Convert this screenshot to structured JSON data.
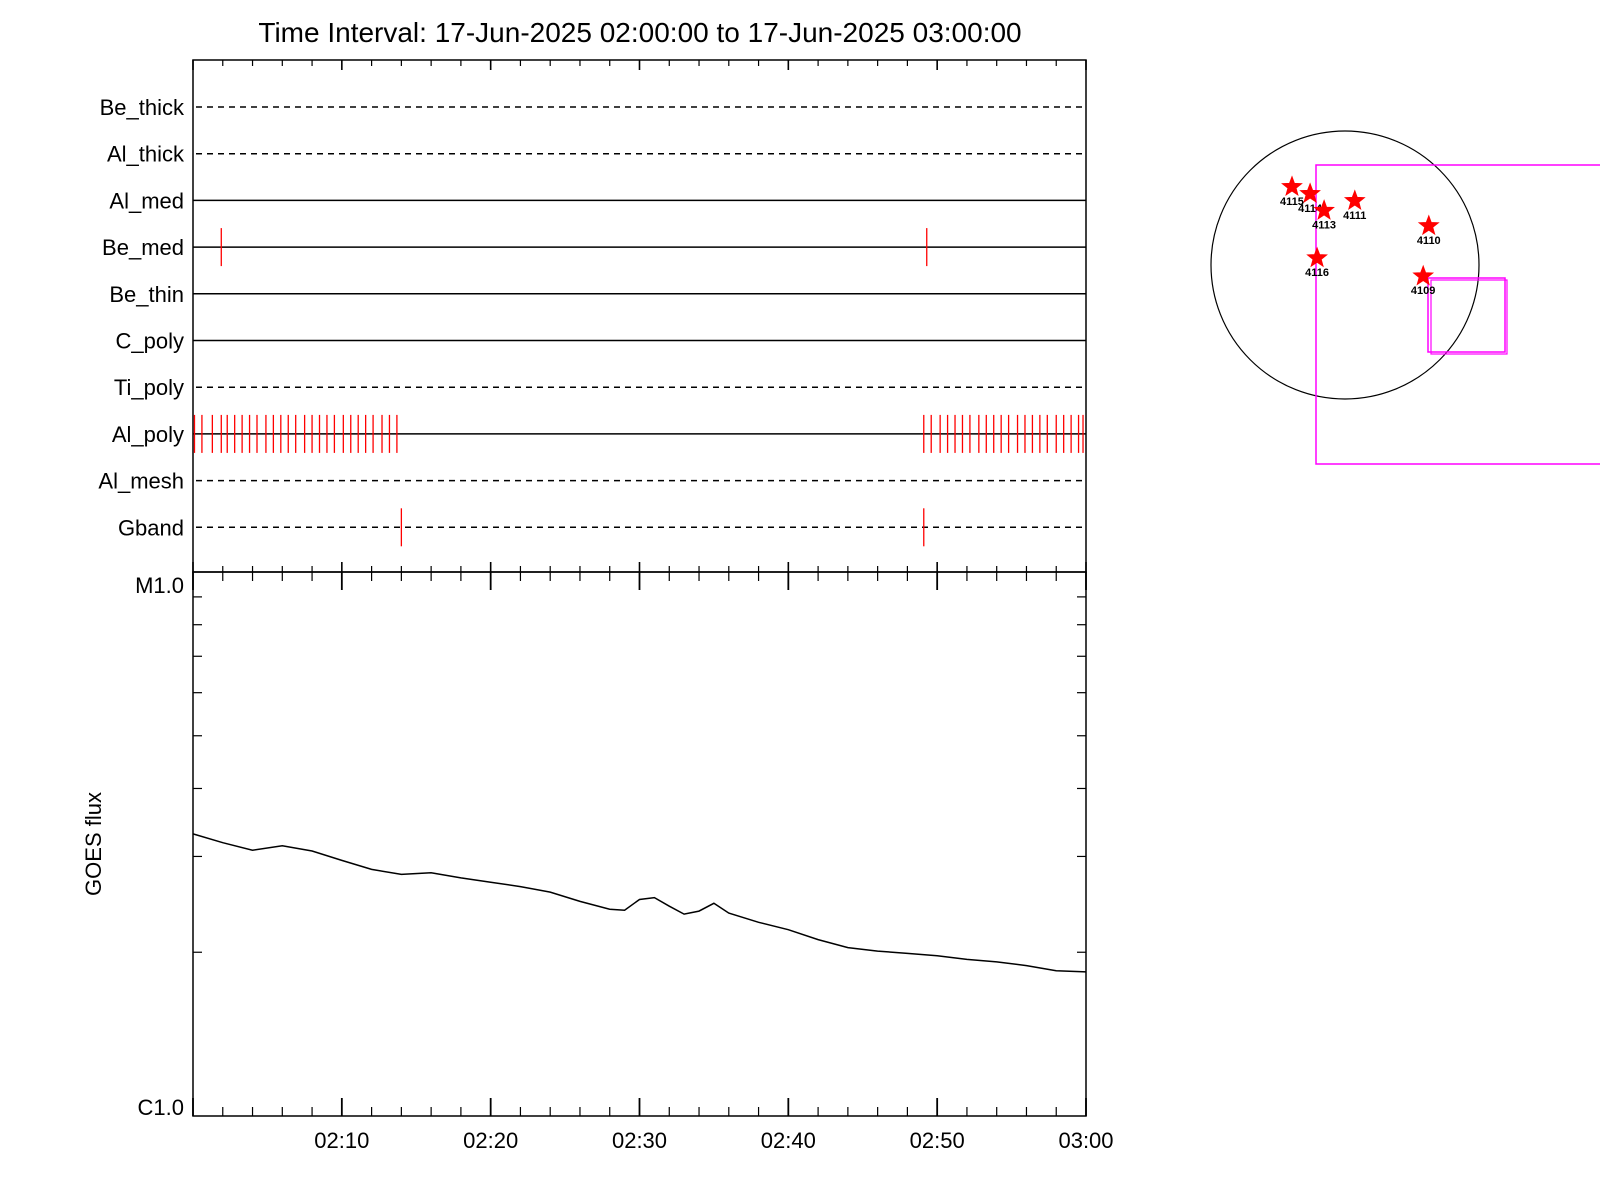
{
  "title": "Time Interval: 17-Jun-2025 02:00:00 to 17-Jun-2025 03:00:00",
  "colors": {
    "axis": "#000000",
    "event": "#ff0000",
    "fov": "#ff00ff",
    "sun": "#000000",
    "curve": "#000000"
  },
  "chart_data": [
    {
      "type": "line",
      "name": "filter-timeline",
      "x_range": [
        "02:00",
        "03:00"
      ],
      "filters": [
        {
          "label": "Be_thick",
          "style": "dashed",
          "events": []
        },
        {
          "label": "Al_thick",
          "style": "dashed",
          "events": []
        },
        {
          "label": "Al_med",
          "style": "solid",
          "events": []
        },
        {
          "label": "Be_med",
          "style": "solid",
          "events": [
            1.9,
            49.3
          ]
        },
        {
          "label": "Be_thin",
          "style": "solid",
          "events": []
        },
        {
          "label": "C_poly",
          "style": "solid",
          "events": []
        },
        {
          "label": "Ti_poly",
          "style": "dashed",
          "events": []
        },
        {
          "label": "Al_poly",
          "style": "solid",
          "events": [
            0.1,
            0.6,
            1.3,
            1.9,
            2.3,
            2.8,
            3.3,
            3.8,
            4.3,
            4.9,
            5.4,
            5.9,
            6.4,
            6.9,
            7.5,
            8.0,
            8.5,
            9.0,
            9.5,
            10.1,
            10.6,
            11.1,
            11.6,
            12.1,
            12.7,
            13.2,
            13.7,
            49.1,
            49.6,
            50.2,
            50.7,
            51.2,
            51.7,
            52.2,
            52.8,
            53.3,
            53.8,
            54.3,
            54.8,
            55.4,
            55.9,
            56.4,
            56.9,
            57.4,
            58.0,
            58.5,
            59.0,
            59.5,
            59.8
          ]
        },
        {
          "label": "Al_mesh",
          "style": "dashed",
          "events": []
        },
        {
          "label": "Gband",
          "style": "dashed",
          "events": [
            14.0,
            49.1
          ]
        }
      ]
    },
    {
      "type": "line",
      "name": "goes-flux",
      "ylabel": "GOES flux",
      "y_tick_labels": [
        "M1.0",
        "C1.0"
      ],
      "y_scale": "log",
      "ylim": [
        1e-06,
        1e-05
      ],
      "x_tick_labels": [
        "02:10",
        "02:20",
        "02:30",
        "02:40",
        "02:50",
        "03:00"
      ],
      "x_minutes": [
        0,
        2,
        4,
        6,
        8,
        10,
        12,
        14,
        16,
        18,
        20,
        22,
        24,
        26,
        28,
        29,
        30,
        31,
        32,
        33,
        34,
        35,
        36,
        38,
        40,
        42,
        44,
        46,
        48,
        50,
        52,
        54,
        56,
        58,
        60
      ],
      "flux": [
        3.3e-06,
        3.18e-06,
        3.08e-06,
        3.14e-06,
        3.07e-06,
        2.95e-06,
        2.84e-06,
        2.78e-06,
        2.8e-06,
        2.74e-06,
        2.69e-06,
        2.64e-06,
        2.58e-06,
        2.48e-06,
        2.4e-06,
        2.39e-06,
        2.5e-06,
        2.52e-06,
        2.43e-06,
        2.35e-06,
        2.38e-06,
        2.46e-06,
        2.36e-06,
        2.27e-06,
        2.2e-06,
        2.11e-06,
        2.04e-06,
        2.01e-06,
        1.99e-06,
        1.97e-06,
        1.94e-06,
        1.92e-06,
        1.89e-06,
        1.85e-06,
        1.84e-06
      ]
    }
  ],
  "solar_map": {
    "regions": [
      {
        "label": "4115",
        "x": -380,
        "y": 560
      },
      {
        "label": "4114",
        "x": -250,
        "y": 510
      },
      {
        "label": "4113",
        "x": -150,
        "y": 390
      },
      {
        "label": "4111",
        "x": 70,
        "y": 460
      },
      {
        "label": "4110",
        "x": 600,
        "y": 280
      },
      {
        "label": "4109",
        "x": 560,
        "y": -80
      },
      {
        "label": "4116",
        "x": -200,
        "y": 50
      }
    ]
  }
}
